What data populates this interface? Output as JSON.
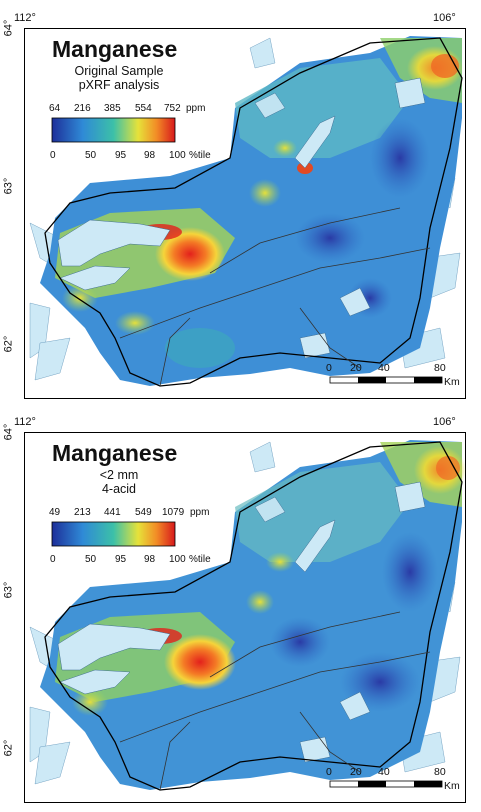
{
  "maps": [
    {
      "title": "Manganese",
      "subtitle_1": "Original Sample",
      "subtitle_2": "pXRF analysis",
      "legend_values": [
        "64",
        "216",
        "385",
        "554",
        "752"
      ],
      "legend_unit": "ppm",
      "legend_percentiles": [
        "0",
        "50",
        "95",
        "98",
        "100"
      ],
      "percentile_unit": "%tile",
      "lon_labels": [
        "112°",
        "106°"
      ],
      "lat_labels": [
        "64°",
        "63°",
        "62°"
      ],
      "scale_ticks": [
        "0",
        "20",
        "40",
        "80"
      ],
      "scale_unit": "Km"
    },
    {
      "title": "Manganese",
      "subtitle_1": "<2 mm",
      "subtitle_2": "4-acid",
      "legend_values": [
        "49",
        "213",
        "441",
        "549",
        "1079"
      ],
      "legend_unit": "ppm",
      "legend_percentiles": [
        "0",
        "50",
        "95",
        "98",
        "100"
      ],
      "percentile_unit": "%tile",
      "lon_labels": [
        "112°",
        "106°"
      ],
      "lat_labels": [
        "64°",
        "63°",
        "62°"
      ],
      "scale_ticks": [
        "0",
        "20",
        "40",
        "80"
      ],
      "scale_unit": "Km"
    }
  ],
  "colors": {
    "ramp": [
      "#2b3ea8",
      "#2f7fd0",
      "#39b7b0",
      "#b9d84a",
      "#f6e23b",
      "#f28c26",
      "#d7191c"
    ],
    "lake": "#cde9f6",
    "boundary": "#000000"
  }
}
